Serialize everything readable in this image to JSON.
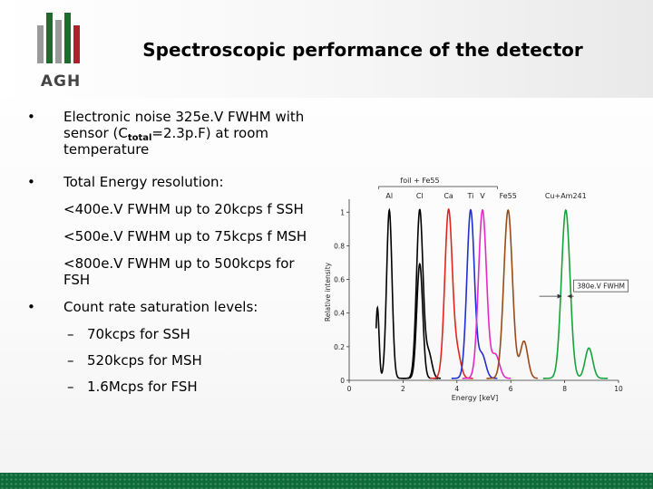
{
  "logo": {
    "text": "AGH"
  },
  "title": "Spectroscopic performance of the detector",
  "bullets": {
    "b1": {
      "dot": "•",
      "pre": "Electronic noise 325e.V FWHM with sensor (C",
      "sub": "total",
      "post": "=2.3p.F) at room temperature"
    },
    "b2": {
      "dot": "•",
      "text": "Total Energy resolution:"
    },
    "s1": "<400e.V FWHM up to 20kcps f SSH",
    "s2": "<500e.V FWHM up to 75kcps f MSH",
    "s3": "<800e.V FWHM up to 500kcps for FSH",
    "b3": {
      "dot": "•",
      "text": "Count rate saturation levels:"
    },
    "d1": {
      "dash": "–",
      "text": "70kcps for SSH"
    },
    "d2": {
      "dash": "–",
      "text": "520kcps for MSH"
    },
    "d3": {
      "dash": "–",
      "text": "1.6Mcps for FSH"
    }
  },
  "chart_data": {
    "type": "line",
    "xlabel": "Energy [keV]",
    "ylabel": "Relative intensity",
    "xlim": [
      0,
      10
    ],
    "ylim": [
      0,
      1.05
    ],
    "xticks": [
      0,
      2,
      4,
      6,
      8,
      10
    ],
    "yticks": [
      0,
      0.2,
      0.4,
      0.6,
      0.8,
      1
    ],
    "xtick_labels": [
      "0",
      "2",
      "4",
      "6",
      "8",
      "10"
    ],
    "ytick_labels": [
      "0",
      "0.2",
      "0.4",
      "0.6",
      "0.8",
      "1"
    ],
    "peak_labels": [
      {
        "text": "Al",
        "x": 1.49
      },
      {
        "text": "Cl",
        "x": 2.62
      },
      {
        "text": "Ca",
        "x": 3.69
      },
      {
        "text": "Ti",
        "x": 4.51
      },
      {
        "text": "V",
        "x": 4.95
      },
      {
        "text": "Fe55",
        "x": 5.9
      },
      {
        "text": "Cu+Am241",
        "x": 8.04
      }
    ],
    "group_label": {
      "text": "foil + Fe55",
      "x_start": 1.1,
      "x_end": 5.5
    },
    "annotation": {
      "text": "380e.V FWHM",
      "x": 8.0,
      "y": 0.5
    },
    "series": [
      {
        "color": "#000000",
        "peaks": [
          [
            1.49,
            1.0,
            0.1
          ],
          [
            2.62,
            0.68,
            0.11
          ],
          [
            1.05,
            0.42,
            0.06
          ]
        ],
        "x_range": [
          1.0,
          3.3
        ]
      },
      {
        "color": "#000000",
        "peaks": [
          [
            2.62,
            1.0,
            0.12
          ],
          [
            2.95,
            0.15,
            0.12
          ]
        ],
        "x_range": [
          2.0,
          3.4
        ]
      },
      {
        "color": "#e0261e",
        "peaks": [
          [
            3.69,
            1.0,
            0.14
          ],
          [
            4.02,
            0.14,
            0.13
          ]
        ],
        "x_range": [
          3.0,
          4.6
        ]
      },
      {
        "color": "#1f2fd1",
        "peaks": [
          [
            4.51,
            1.0,
            0.14
          ],
          [
            4.93,
            0.14,
            0.14
          ]
        ],
        "x_range": [
          3.8,
          5.5
        ]
      },
      {
        "color": "#e529c6",
        "peaks": [
          [
            4.95,
            1.0,
            0.15
          ],
          [
            5.43,
            0.14,
            0.15
          ]
        ],
        "x_range": [
          4.2,
          6.0
        ]
      },
      {
        "color": "#9a4a16",
        "peaks": [
          [
            5.9,
            1.0,
            0.16
          ],
          [
            6.49,
            0.22,
            0.14
          ]
        ],
        "x_range": [
          5.1,
          7.0
        ]
      },
      {
        "color": "#16a33a",
        "peaks": [
          [
            8.04,
            1.0,
            0.16
          ],
          [
            8.9,
            0.18,
            0.14
          ]
        ],
        "x_range": [
          7.2,
          9.6
        ]
      }
    ],
    "colors": {
      "axis": "#333333",
      "text": "#222222"
    }
  }
}
